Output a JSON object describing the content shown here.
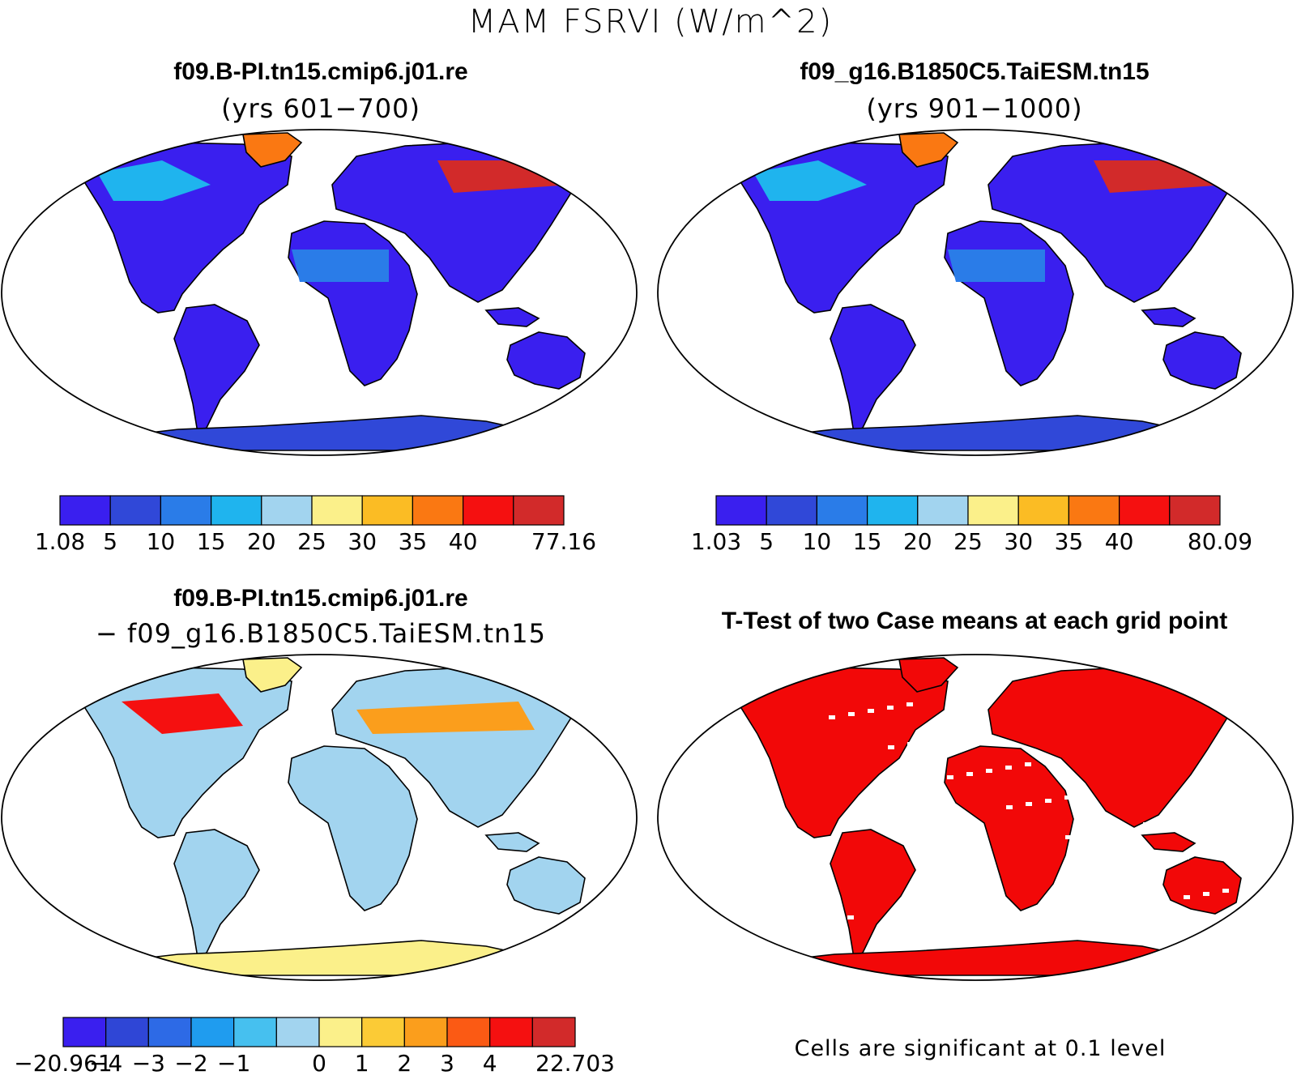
{
  "figure": {
    "title": "MAM FSRVI (W/m^2)"
  },
  "panels": [
    {
      "id": "case1",
      "title_line1": "f09.B-PI.tn15.cmip6.j01.re",
      "title_line2": "(yrs 601−700)",
      "kind": "field"
    },
    {
      "id": "case2",
      "title_line1": "f09_g16.B1850C5.TaiESM.tn15",
      "title_line2": "(yrs 901−1000)",
      "kind": "field"
    },
    {
      "id": "diff",
      "title_line1": "f09.B-PI.tn15.cmip6.j01.re",
      "title_line2": "− f09_g16.B1850C5.TaiESM.tn15",
      "kind": "difference"
    },
    {
      "id": "ttest",
      "title_line1": "T-Test of two Case means at each grid point",
      "title_line2": "",
      "kind": "significance",
      "note": "Cells are significant at 0.1 level"
    }
  ],
  "chart_data": [
    {
      "type": "heatmap",
      "title": "f09.B-PI.tn15.cmip6.j01.re (yrs 601−700)",
      "projection": "Robinson",
      "colorbar": {
        "levels": [
          "1.08",
          "5",
          "10",
          "15",
          "20",
          "25",
          "30",
          "35",
          "40",
          "77.16"
        ],
        "label_boxes": [
          0,
          1,
          2,
          3,
          4,
          5,
          6,
          7,
          8,
          10
        ],
        "colors": [
          "#3a1fef",
          "#3048d8",
          "#2a7ce8",
          "#1fb4ee",
          "#a2d4ef",
          "#fbf08a",
          "#fbbc24",
          "#fa7812",
          "#f51010",
          "#d22a2a"
        ]
      }
    },
    {
      "type": "heatmap",
      "title": "f09_g16.B1850C5.TaiESM.tn15 (yrs 901−1000)",
      "projection": "Robinson",
      "colorbar": {
        "levels": [
          "1.03",
          "5",
          "10",
          "15",
          "20",
          "25",
          "30",
          "35",
          "40",
          "80.09"
        ],
        "label_boxes": [
          0,
          1,
          2,
          3,
          4,
          5,
          6,
          7,
          8,
          10
        ],
        "colors": [
          "#3a1fef",
          "#3048d8",
          "#2a7ce8",
          "#1fb4ee",
          "#a2d4ef",
          "#fbf08a",
          "#fbbc24",
          "#fa7812",
          "#f51010",
          "#d22a2a"
        ]
      }
    },
    {
      "type": "heatmap",
      "title": "f09.B-PI.tn15.cmip6.j01.re − f09_g16.B1850C5.TaiESM.tn15",
      "projection": "Robinson",
      "colorbar": {
        "levels": [
          "−20.961",
          "−4",
          "−3",
          "−2",
          "−1",
          "0",
          "1",
          "2",
          "3",
          "4",
          "22.703"
        ],
        "label_boxes": [
          0,
          1,
          2,
          3,
          4,
          6,
          7,
          8,
          9,
          10,
          12
        ],
        "colors": [
          "#3a1fef",
          "#2f46d6",
          "#2d6ae6",
          "#1f9cef",
          "#46c0ef",
          "#a2d4ef",
          "#fbf08a",
          "#fbcb36",
          "#fb9e1c",
          "#fb5a14",
          "#f51010",
          "#d22a2a"
        ]
      }
    },
    {
      "type": "heatmap",
      "title": "T-Test of two Case means at each grid point",
      "projection": "Robinson",
      "significance_color": "#f20808"
    }
  ]
}
